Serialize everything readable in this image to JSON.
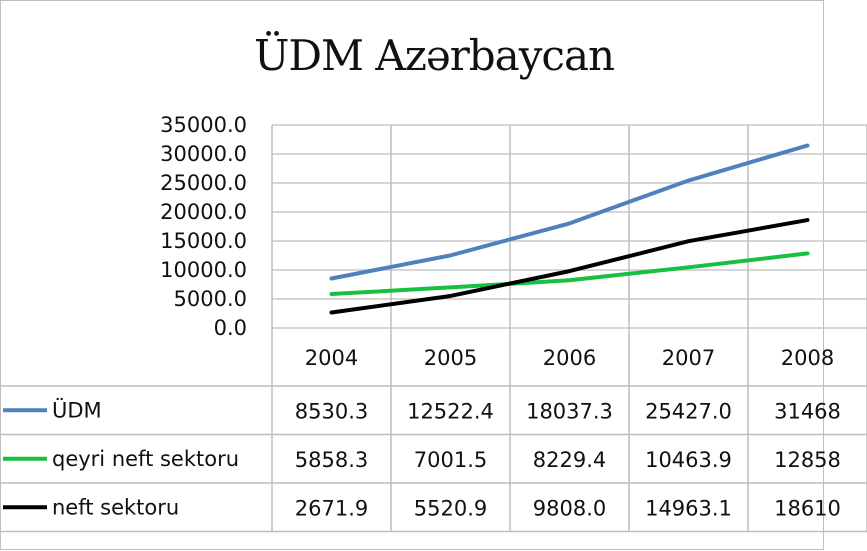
{
  "chart_data": {
    "type": "line",
    "title": "ÜDM Azərbaycan",
    "categories": [
      "2004",
      "2005",
      "2006",
      "2007",
      "2008"
    ],
    "ylim": [
      0,
      35000
    ],
    "yticks": [
      "0.0",
      "5000.0",
      "10000.0",
      "15000.0",
      "20000.0",
      "25000.0",
      "30000.0",
      "35000.0"
    ],
    "grid": true,
    "legend": "data-table",
    "series": [
      {
        "name": "ÜDM",
        "color": "#4f81bd",
        "values": [
          8530.3,
          12522.4,
          18037.3,
          25427.0,
          31468.0
        ],
        "labels": [
          "8530.3",
          "12522.4",
          "18037.3",
          "25427.0",
          "31468"
        ]
      },
      {
        "name": "qeyri neft sektoru",
        "color": "#17c040",
        "values": [
          5858.3,
          7001.5,
          8229.4,
          10463.9,
          12858.0
        ],
        "labels": [
          "5858.3",
          "7001.5",
          "8229.4",
          "10463.9",
          "12858"
        ]
      },
      {
        "name": "neft sektoru",
        "color": "#000000",
        "values": [
          2671.9,
          5520.9,
          9808.0,
          14963.1,
          18610.0
        ],
        "labels": [
          "2671.9",
          "5520.9",
          "9808.0",
          "14963.1",
          "18610"
        ]
      }
    ]
  }
}
